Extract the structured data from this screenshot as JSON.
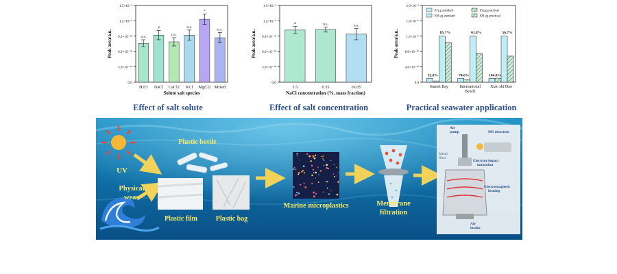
{
  "chart_data": [
    {
      "type": "bar",
      "title": "Effect of salt solute",
      "xlabel": "Solute salt species",
      "ylabel": "Peak area/a.u.",
      "categories": [
        "H2O",
        "NaCl",
        "CaCl2",
        "KCl",
        "MgCl2",
        "Mixed"
      ],
      "values": [
        7.6e-10,
        9.2e-10,
        7.9e-10,
        9.2e-10,
        1.23e-09,
        8.7e-10
      ],
      "errors": [
        7e-11,
        9e-11,
        8e-11,
        1e-10,
        1e-10,
        1e-10
      ],
      "annotations": [
        "n.s.",
        "#",
        "n.s.",
        "n.s.",
        "*",
        "n.s."
      ],
      "yticks": [
        "0.0",
        "3.0×10⁻¹⁰",
        "6.0×10⁻¹⁰",
        "9.0×10⁻¹⁰",
        "1.2×10⁻⁹",
        "1.5×10⁻⁹"
      ],
      "ylim": [
        0,
        1.5e-09
      ],
      "colors": [
        "#a7e6c6",
        "#9fe2cf",
        "#b1e8b4",
        "#a9d9ee",
        "#b7a6f3",
        "#aab5ef"
      ]
    },
    {
      "type": "bar",
      "title": "Effect of salt concentration",
      "xlabel": "NaCl concentration (%, mass fraction)",
      "ylabel": "Peak area/a.u.",
      "categories": [
        "3.5",
        "0.35",
        "0.035"
      ],
      "values": [
        1.02e-09,
        1.03e-09,
        9.4e-10
      ],
      "errors": [
        7e-11,
        5e-11,
        1.1e-10
      ],
      "annotations": [
        "#",
        "n.s.",
        "n.s."
      ],
      "yticks": [
        "0.0",
        "3.0×10⁻¹⁰",
        "6.0×10⁻¹⁰",
        "9.0×10⁻¹⁰",
        "1.2×10⁻⁹",
        "1.5×10⁻⁹"
      ],
      "ylim": [
        0,
        1.5e-09
      ],
      "colors": [
        "#aee9cf",
        "#aee7cf",
        "#b3def2"
      ]
    },
    {
      "type": "bar",
      "title": "Practical seawater application",
      "ylabel": "Peak area/a.u.",
      "categories": [
        "Sunset Bay",
        "International Beach",
        "Xiao shi Dao"
      ],
      "series": [
        {
          "name": "10 μg standard",
          "values": [
            1e-10,
            1e-10,
            1e-10
          ]
        },
        {
          "name": "10 μg practical",
          "values": [
            3.3e-11,
            7.5e-11,
            1.05e-10
          ]
        },
        {
          "name": "100 μg standard",
          "values": [
            1.2e-09,
            1.2e-09,
            1.2e-09
          ]
        },
        {
          "name": "100 μg practical",
          "values": [
            1.03e-09,
            7.4e-10,
            6.8e-10
          ]
        }
      ],
      "percent_labels": [
        [
          "32.8%",
          "85.7%"
        ],
        [
          "74.6%",
          "61.8%"
        ],
        [
          "104.8%",
          "56.7%"
        ]
      ],
      "yticks": [
        "0.0",
        "4.0×10⁻¹⁰",
        "8.0×10⁻¹⁰",
        "1.2×10⁻⁹",
        "1.6×10⁻⁹",
        "2.0×10⁻⁹"
      ],
      "ylim": [
        0,
        2e-09
      ],
      "colors": [
        "#bfeef6",
        "#c7ecd9"
      ]
    }
  ],
  "captions": [
    "Effect of salt solute",
    "Effect of salt concentration",
    "Practical seawater application"
  ],
  "banner": {
    "uv_label": "UV",
    "wear_label_1": "Physical",
    "wear_label_2": "wear",
    "bottle_label": "Plastic bottle",
    "film_label": "Plastic film",
    "bag_label": "Plastic bag",
    "microplastics_label": "Marine microplastics",
    "membrane_label_1": "Membrane",
    "membrane_label_2": "filtration",
    "air_pump": [
      "Air",
      "pump"
    ],
    "ms_detection": "MS detection",
    "metal_filter": [
      "Metal",
      "filter"
    ],
    "ei_label": [
      "Electron impact",
      "ionization"
    ],
    "em_heating": [
      "Electromagnetic",
      "heating"
    ],
    "air_intake": [
      "Air",
      "intake"
    ]
  }
}
